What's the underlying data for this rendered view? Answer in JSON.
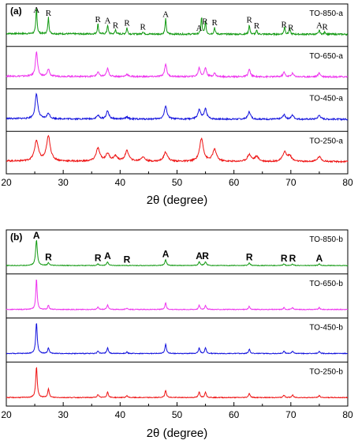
{
  "chart_data": [
    {
      "type": "line",
      "panel_label": "(a)",
      "xlabel": "2θ (degree)",
      "xlim": [
        20,
        80
      ],
      "xticks": [
        "20",
        "30",
        "40",
        "50",
        "60",
        "70",
        "80"
      ],
      "series": [
        {
          "name": "TO-850-a",
          "color": "#119911",
          "width": 0.12,
          "peaks": [
            [
              25.3,
              1.0
            ],
            [
              27.4,
              0.62
            ],
            [
              36.1,
              0.38
            ],
            [
              37.8,
              0.34
            ],
            [
              39.2,
              0.16
            ],
            [
              41.2,
              0.24
            ],
            [
              44.0,
              0.1
            ],
            [
              48.0,
              0.58
            ],
            [
              54.3,
              0.62
            ],
            [
              55.0,
              0.48
            ],
            [
              56.6,
              0.26
            ],
            [
              62.7,
              0.36
            ],
            [
              64.0,
              0.14
            ],
            [
              68.9,
              0.3
            ],
            [
              69.8,
              0.22
            ],
            [
              75.0,
              0.16
            ],
            [
              76.0,
              0.1
            ]
          ]
        },
        {
          "name": "TO-650-a",
          "color": "#ee33ee",
          "width": 0.22,
          "peaks": [
            [
              25.3,
              1.0
            ],
            [
              27.4,
              0.3
            ],
            [
              36.1,
              0.18
            ],
            [
              37.8,
              0.32
            ],
            [
              41.2,
              0.1
            ],
            [
              48.0,
              0.52
            ],
            [
              53.9,
              0.36
            ],
            [
              55.0,
              0.36
            ],
            [
              56.6,
              0.14
            ],
            [
              62.7,
              0.3
            ],
            [
              68.8,
              0.18
            ],
            [
              70.3,
              0.14
            ],
            [
              75.0,
              0.16
            ]
          ]
        },
        {
          "name": "TO-450-a",
          "color": "#1111dd",
          "width": 0.28,
          "peaks": [
            [
              25.3,
              1.0
            ],
            [
              27.4,
              0.22
            ],
            [
              36.1,
              0.14
            ],
            [
              37.8,
              0.32
            ],
            [
              41.2,
              0.08
            ],
            [
              48.0,
              0.52
            ],
            [
              53.9,
              0.38
            ],
            [
              55.0,
              0.4
            ],
            [
              62.7,
              0.3
            ],
            [
              68.8,
              0.18
            ],
            [
              70.3,
              0.16
            ],
            [
              75.0,
              0.16
            ]
          ]
        },
        {
          "name": "TO-250-a",
          "color": "#ee1111",
          "width": 0.4,
          "peaks": [
            [
              25.3,
              0.82
            ],
            [
              27.4,
              1.0
            ],
            [
              36.1,
              0.52
            ],
            [
              37.8,
              0.3
            ],
            [
              39.2,
              0.2
            ],
            [
              41.2,
              0.42
            ],
            [
              44.0,
              0.18
            ],
            [
              48.0,
              0.38
            ],
            [
              54.3,
              0.92
            ],
            [
              56.6,
              0.48
            ],
            [
              62.7,
              0.28
            ],
            [
              64.0,
              0.2
            ],
            [
              68.9,
              0.38
            ],
            [
              69.8,
              0.22
            ],
            [
              75.0,
              0.2
            ]
          ]
        }
      ],
      "peak_labels": [
        {
          "x": 25.3,
          "label": "A"
        },
        {
          "x": 27.4,
          "label": "R"
        },
        {
          "x": 36.1,
          "label": "R"
        },
        {
          "x": 37.8,
          "label": "A"
        },
        {
          "x": 39.2,
          "label": "R"
        },
        {
          "x": 41.2,
          "label": "R"
        },
        {
          "x": 44.0,
          "label": "R"
        },
        {
          "x": 48.0,
          "label": "A"
        },
        {
          "x": 53.9,
          "label": "A"
        },
        {
          "x": 54.9,
          "label": "R"
        },
        {
          "x": 56.6,
          "label": "R"
        },
        {
          "x": 62.7,
          "label": "R"
        },
        {
          "x": 64.0,
          "label": "R"
        },
        {
          "x": 68.8,
          "label": "R"
        },
        {
          "x": 70.0,
          "label": "R"
        },
        {
          "x": 75.0,
          "label": "A"
        },
        {
          "x": 76.0,
          "label": "R"
        }
      ]
    },
    {
      "type": "line",
      "panel_label": "(b)",
      "xlabel": "2θ (degree)",
      "xlim": [
        20,
        80
      ],
      "xticks": [
        "20",
        "30",
        "40",
        "50",
        "60",
        "70",
        "80"
      ],
      "series": [
        {
          "name": "TO-850-b",
          "color": "#119911",
          "width": 0.18,
          "peaks": [
            [
              25.3,
              1.0
            ],
            [
              27.4,
              0.1
            ],
            [
              36.1,
              0.06
            ],
            [
              37.8,
              0.14
            ],
            [
              48.0,
              0.22
            ],
            [
              53.9,
              0.14
            ],
            [
              55.0,
              0.14
            ],
            [
              62.7,
              0.1
            ],
            [
              68.8,
              0.06
            ],
            [
              70.3,
              0.06
            ],
            [
              75.0,
              0.06
            ]
          ]
        },
        {
          "name": "TO-650-b",
          "color": "#ee33ee",
          "width": 0.14,
          "peaks": [
            [
              25.3,
              1.0
            ],
            [
              27.4,
              0.14
            ],
            [
              36.1,
              0.08
            ],
            [
              37.8,
              0.16
            ],
            [
              41.2,
              0.05
            ],
            [
              48.0,
              0.22
            ],
            [
              53.9,
              0.14
            ],
            [
              55.0,
              0.14
            ],
            [
              62.7,
              0.1
            ],
            [
              68.8,
              0.06
            ],
            [
              70.3,
              0.06
            ],
            [
              75.0,
              0.06
            ]
          ]
        },
        {
          "name": "TO-450-b",
          "color": "#1111dd",
          "width": 0.16,
          "peaks": [
            [
              25.3,
              1.0
            ],
            [
              27.4,
              0.18
            ],
            [
              36.1,
              0.08
            ],
            [
              37.8,
              0.18
            ],
            [
              41.2,
              0.05
            ],
            [
              48.0,
              0.3
            ],
            [
              53.9,
              0.18
            ],
            [
              55.0,
              0.18
            ],
            [
              62.7,
              0.14
            ],
            [
              68.8,
              0.08
            ],
            [
              70.3,
              0.08
            ],
            [
              75.0,
              0.06
            ]
          ]
        },
        {
          "name": "TO-250-b",
          "color": "#ee1111",
          "width": 0.16,
          "peaks": [
            [
              25.3,
              1.0
            ],
            [
              27.4,
              0.28
            ],
            [
              36.1,
              0.1
            ],
            [
              37.8,
              0.18
            ],
            [
              41.2,
              0.06
            ],
            [
              48.0,
              0.24
            ],
            [
              53.9,
              0.18
            ],
            [
              55.0,
              0.18
            ],
            [
              62.7,
              0.14
            ],
            [
              68.8,
              0.08
            ],
            [
              70.3,
              0.08
            ],
            [
              75.0,
              0.06
            ]
          ]
        }
      ],
      "peak_labels": [
        {
          "x": 25.3,
          "label": "A"
        },
        {
          "x": 27.4,
          "label": "R"
        },
        {
          "x": 36.1,
          "label": "R"
        },
        {
          "x": 37.8,
          "label": "A"
        },
        {
          "x": 41.2,
          "label": "R"
        },
        {
          "x": 48.0,
          "label": "A"
        },
        {
          "x": 53.9,
          "label": "A"
        },
        {
          "x": 55.0,
          "label": "R"
        },
        {
          "x": 62.7,
          "label": "R"
        },
        {
          "x": 68.8,
          "label": "R"
        },
        {
          "x": 70.3,
          "label": "R"
        },
        {
          "x": 75.0,
          "label": "A"
        }
      ]
    }
  ]
}
